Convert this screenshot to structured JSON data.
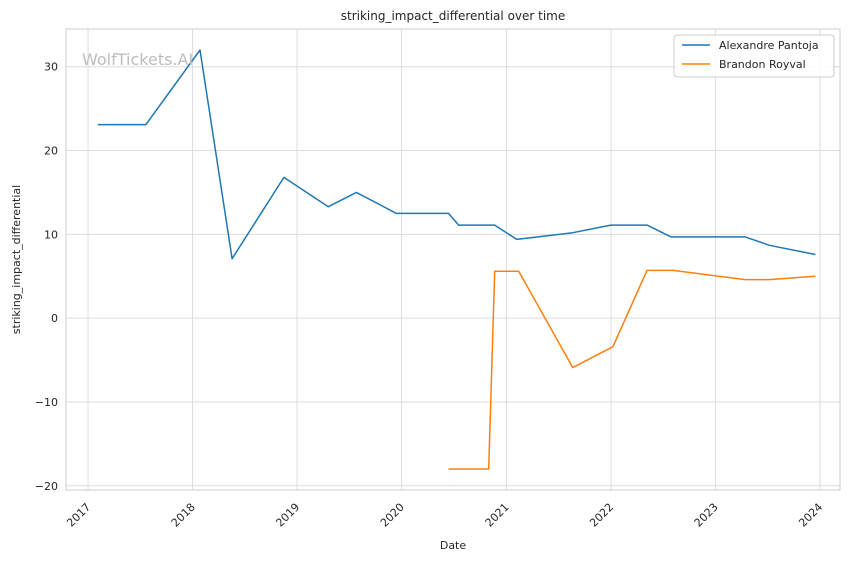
{
  "chart_data": {
    "type": "line",
    "title": "striking_impact_differential over time",
    "xlabel": "Date",
    "ylabel": "striking_impact_differential",
    "watermark": "WolfTickets.AI",
    "x_ticks": [
      "2017",
      "2018",
      "2019",
      "2020",
      "2021",
      "2022",
      "2023",
      "2024"
    ],
    "y_ticks": [
      30,
      20,
      10,
      0,
      -10,
      -20
    ],
    "y_tick_labels": [
      "30",
      "20",
      "10",
      "0",
      "−10",
      "−20"
    ],
    "xlim": [
      "2016-10-16",
      "2024-03-11"
    ],
    "ylim": [
      -20.5,
      34.5
    ],
    "grid": true,
    "legend_position": "top-right",
    "series": [
      {
        "name": "Alexandre Pantoja",
        "color": "#1f77b4",
        "points": [
          {
            "x": "2017-02-04",
            "y": 23.1
          },
          {
            "x": "2017-07-22",
            "y": 23.1
          },
          {
            "x": "2018-01-27",
            "y": 32.0
          },
          {
            "x": "2018-05-19",
            "y": 7.1
          },
          {
            "x": "2018-11-16",
            "y": 16.8
          },
          {
            "x": "2019-04-20",
            "y": 13.3
          },
          {
            "x": "2019-07-27",
            "y": 15.0
          },
          {
            "x": "2019-12-14",
            "y": 12.5
          },
          {
            "x": "2020-06-13",
            "y": 12.5
          },
          {
            "x": "2020-07-18",
            "y": 11.1
          },
          {
            "x": "2020-11-21",
            "y": 11.1
          },
          {
            "x": "2021-02-06",
            "y": 9.4
          },
          {
            "x": "2021-08-21",
            "y": 10.2
          },
          {
            "x": "2022-01-01",
            "y": 11.1
          },
          {
            "x": "2022-05-07",
            "y": 11.1
          },
          {
            "x": "2022-07-30",
            "y": 9.7
          },
          {
            "x": "2023-04-15",
            "y": 9.7
          },
          {
            "x": "2023-07-08",
            "y": 8.7
          },
          {
            "x": "2023-12-16",
            "y": 7.6
          }
        ]
      },
      {
        "name": "Brandon Royval",
        "color": "#ff7f0e",
        "points": [
          {
            "x": "2020-06-13",
            "y": -18.0
          },
          {
            "x": "2020-10-31",
            "y": -18.0
          },
          {
            "x": "2020-11-21",
            "y": 5.6
          },
          {
            "x": "2021-02-13",
            "y": 5.6
          },
          {
            "x": "2021-08-21",
            "y": -5.9
          },
          {
            "x": "2022-01-08",
            "y": -3.4
          },
          {
            "x": "2022-05-07",
            "y": 5.7
          },
          {
            "x": "2022-08-06",
            "y": 5.7
          },
          {
            "x": "2023-04-15",
            "y": 4.6
          },
          {
            "x": "2023-07-08",
            "y": 4.6
          },
          {
            "x": "2023-12-16",
            "y": 5.0
          }
        ]
      }
    ]
  }
}
